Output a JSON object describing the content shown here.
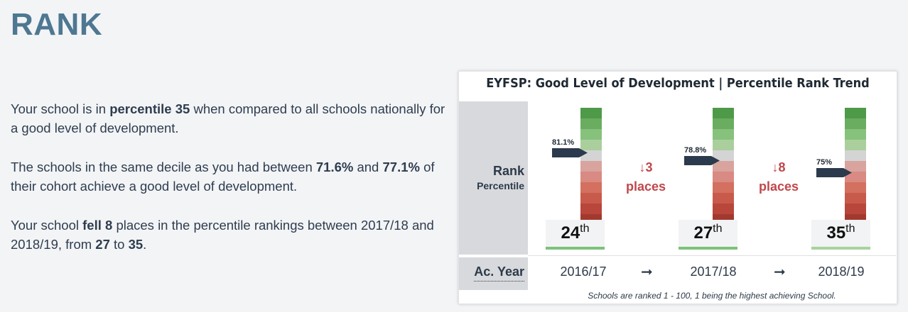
{
  "page": {
    "title": "RANK"
  },
  "summary": {
    "p1": {
      "a": "Your school is in ",
      "b": "percentile 35",
      "c": " when compared to all schools nationally for a good level of development."
    },
    "p2": {
      "a": "The schools in the same decile as you had between ",
      "b": "71.6%",
      "c": " and ",
      "d": "77.1%",
      "e": " of their cohort achieve a good level of development."
    },
    "p3": {
      "a": "Your school ",
      "b": "fell 8",
      "c": " places in the percentile rankings between 2017/18 and 2018/19, from ",
      "d": "27",
      "e": " to ",
      "f": "35",
      "g": "."
    }
  },
  "card": {
    "title": "EYFSP: Good Level of Development | Percentile Rank Trend",
    "rank_label": "Rank",
    "percentile_label": "Percentile",
    "year_label": "Ac. Year",
    "footnote": "Schools are ranked 1 - 100, 1 being the highest achieving School.",
    "year_arrow": "➞",
    "ladder_colors": [
      "#4e9a48",
      "#6aad60",
      "#86c27c",
      "#aacf9d",
      "#d4d4d4",
      "#d9a39e",
      "#d98a82",
      "#d4705f",
      "#c85a4b",
      "#b8463b",
      "#a2392f"
    ],
    "columns": [
      {
        "year": "2016/17",
        "pct_label": "81.1%",
        "rank_num": "24",
        "rank_suffix": "th",
        "level": 0.62,
        "box_border": "#7cc27a"
      },
      {
        "year": "2017/18",
        "pct_label": "78.8%",
        "rank_num": "27",
        "rank_suffix": "th",
        "level": 0.55,
        "box_border": "#7cc27a"
      },
      {
        "year": "2018/19",
        "pct_label": "75%",
        "rank_num": "35",
        "rank_suffix": "th",
        "level": 0.45,
        "box_border": "#a8d2a0"
      }
    ],
    "changes": [
      {
        "arrow": "↓",
        "num": "3",
        "word": "places"
      },
      {
        "arrow": "↓",
        "num": "8",
        "word": "places"
      }
    ]
  }
}
